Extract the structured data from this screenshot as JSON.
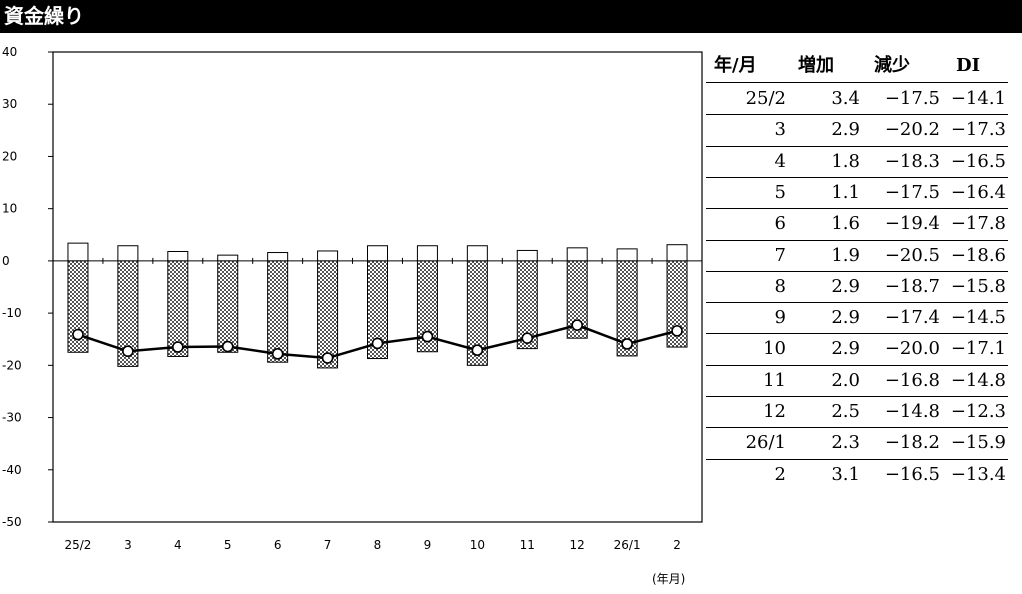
{
  "title": "資金繰り",
  "x_unit": "(年月)",
  "table": {
    "headers": [
      "年/月",
      "増加",
      "減少",
      "DI"
    ],
    "rows": [
      [
        "25/2",
        "3.4",
        "−17.5",
        "−14.1"
      ],
      [
        "3",
        "2.9",
        "−20.2",
        "−17.3"
      ],
      [
        "4",
        "1.8",
        "−18.3",
        "−16.5"
      ],
      [
        "5",
        "1.1",
        "−17.5",
        "−16.4"
      ],
      [
        "6",
        "1.6",
        "−19.4",
        "−17.8"
      ],
      [
        "7",
        "1.9",
        "−20.5",
        "−18.6"
      ],
      [
        "8",
        "2.9",
        "−18.7",
        "−15.8"
      ],
      [
        "9",
        "2.9",
        "−17.4",
        "−14.5"
      ],
      [
        "10",
        "2.9",
        "−20.0",
        "−17.1"
      ],
      [
        "11",
        "2.0",
        "−16.8",
        "−14.8"
      ],
      [
        "12",
        "2.5",
        "−14.8",
        "−12.3"
      ],
      [
        "26/1",
        "2.3",
        "−18.2",
        "−15.9"
      ],
      [
        "2",
        "3.1",
        "−16.5",
        "−13.4"
      ]
    ]
  },
  "chart_data": {
    "type": "bar",
    "categories": [
      "25/2",
      "3",
      "4",
      "5",
      "6",
      "7",
      "8",
      "9",
      "10",
      "11",
      "12",
      "26/1",
      "2"
    ],
    "series": [
      {
        "name": "増加",
        "type": "bar",
        "values": [
          3.4,
          2.9,
          1.8,
          1.1,
          1.6,
          1.9,
          2.9,
          2.9,
          2.9,
          2.0,
          2.5,
          2.3,
          3.1
        ]
      },
      {
        "name": "減少",
        "type": "bar",
        "values": [
          -17.5,
          -20.2,
          -18.3,
          -17.5,
          -19.4,
          -20.5,
          -18.7,
          -17.4,
          -20.0,
          -16.8,
          -14.8,
          -18.2,
          -16.5
        ]
      },
      {
        "name": "DI",
        "type": "line",
        "values": [
          -14.1,
          -17.3,
          -16.5,
          -16.4,
          -17.8,
          -18.6,
          -15.8,
          -14.5,
          -17.1,
          -14.8,
          -12.3,
          -15.9,
          -13.4
        ]
      }
    ],
    "ylim": [
      -50,
      40
    ],
    "yticks": [
      40,
      30,
      20,
      10,
      0,
      -10,
      -20,
      -30,
      -40,
      -50
    ],
    "grid": false,
    "legend": "none"
  }
}
